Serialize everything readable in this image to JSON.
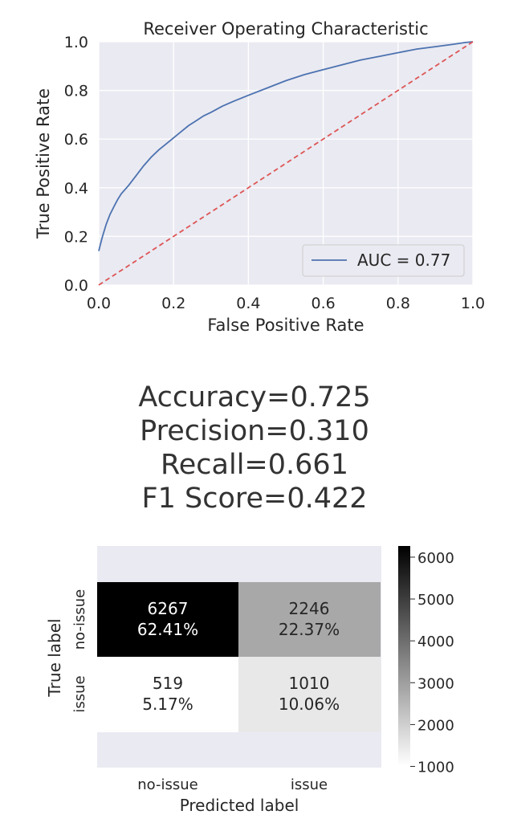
{
  "chart_data": [
    {
      "type": "line",
      "title": "Receiver Operating Characteristic",
      "xlabel": "False Positive Rate",
      "ylabel": "True Positive Rate",
      "xlim": [
        0.0,
        1.0
      ],
      "ylim": [
        0.0,
        1.0
      ],
      "xticks": [
        "0.0",
        "0.2",
        "0.4",
        "0.6",
        "0.8",
        "1.0"
      ],
      "yticks": [
        "0.0",
        "0.2",
        "0.4",
        "0.6",
        "0.8",
        "1.0"
      ],
      "grid": true,
      "legend_position": "lower-right",
      "series": [
        {
          "name": "AUC = 0.77",
          "color": "#4c72b0",
          "style": "solid",
          "x": [
            0.0,
            0.005,
            0.01,
            0.02,
            0.03,
            0.04,
            0.05,
            0.06,
            0.08,
            0.1,
            0.12,
            0.14,
            0.16,
            0.18,
            0.2,
            0.22,
            0.24,
            0.26,
            0.28,
            0.3,
            0.33,
            0.36,
            0.4,
            0.45,
            0.5,
            0.55,
            0.6,
            0.65,
            0.7,
            0.75,
            0.8,
            0.85,
            0.9,
            0.95,
            0.98,
            1.0
          ],
          "y": [
            0.14,
            0.17,
            0.2,
            0.25,
            0.29,
            0.32,
            0.35,
            0.375,
            0.41,
            0.45,
            0.49,
            0.525,
            0.555,
            0.58,
            0.605,
            0.63,
            0.655,
            0.675,
            0.695,
            0.71,
            0.735,
            0.755,
            0.78,
            0.81,
            0.84,
            0.865,
            0.885,
            0.905,
            0.925,
            0.94,
            0.955,
            0.97,
            0.98,
            0.99,
            0.997,
            1.0
          ]
        },
        {
          "color": "#dd5555",
          "style": "dashed",
          "x": [
            0.0,
            1.0
          ],
          "y": [
            0.0,
            1.0
          ]
        }
      ]
    },
    {
      "type": "heatmap",
      "xlabel": "Predicted label",
      "ylabel": "True label",
      "x_categories": [
        "no-issue",
        "issue"
      ],
      "y_categories": [
        "no-issue",
        "issue"
      ],
      "counts": [
        [
          6267,
          2246
        ],
        [
          519,
          1010
        ]
      ],
      "percents": [
        "62.41%",
        "22.37%",
        "5.17%",
        "10.06%"
      ],
      "colormap": "binary",
      "colorbar_range": [
        1010,
        6267
      ],
      "colorbar_ticks": [
        "1000",
        "2000",
        "3000",
        "4000",
        "5000",
        "6000"
      ]
    }
  ],
  "metrics": {
    "accuracy": "Accuracy=0.725",
    "precision": "Precision=0.310",
    "recall": "Recall=0.661",
    "f1": "F1 Score=0.422"
  }
}
